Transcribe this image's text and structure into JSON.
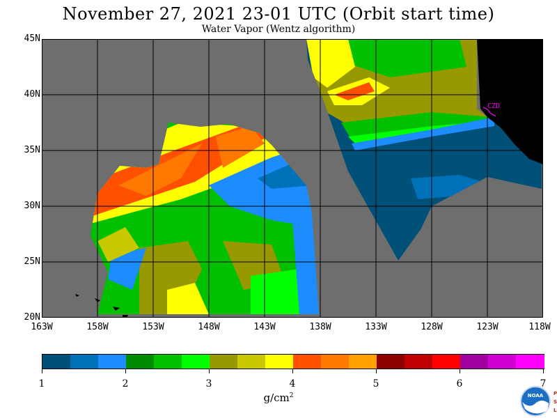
{
  "header": {
    "title": "November 27, 2021  23-01 UTC  (Orbit start time)",
    "subtitle": "Water Vapor (Wentz algorithm)"
  },
  "map": {
    "lat_labels": [
      "45N",
      "40N",
      "35N",
      "30N",
      "25N",
      "20N"
    ],
    "lon_labels": [
      "163W",
      "158W",
      "153W",
      "148W",
      "143W",
      "138W",
      "133W",
      "128W",
      "123W",
      "118W"
    ],
    "extent": {
      "lon_min": -163,
      "lon_max": -118,
      "lat_min": 20,
      "lat_max": 45
    },
    "station_label": "CZD",
    "colors": {
      "no_data": "#6e6e6e",
      "land": "#000000",
      "grid": "#000000",
      "station": "#ff00ff"
    }
  },
  "colorbar": {
    "unit_base": "g/cm",
    "unit_exp": "2",
    "tick_labels": [
      "1",
      "2",
      "3",
      "4",
      "5",
      "6",
      "7"
    ],
    "range": [
      1,
      7
    ],
    "colors": [
      "#005078",
      "#0070b8",
      "#1c8cff",
      "#008c00",
      "#00c000",
      "#00ff00",
      "#989800",
      "#c8c800",
      "#ffff00",
      "#ff5000",
      "#ff7800",
      "#ffa000",
      "#8c0000",
      "#c00000",
      "#ff0000",
      "#a000a0",
      "#d000d0",
      "#ff00ff"
    ]
  },
  "logo": {
    "text": "NOAA",
    "side_letters": [
      "P",
      "S",
      "L"
    ]
  }
}
